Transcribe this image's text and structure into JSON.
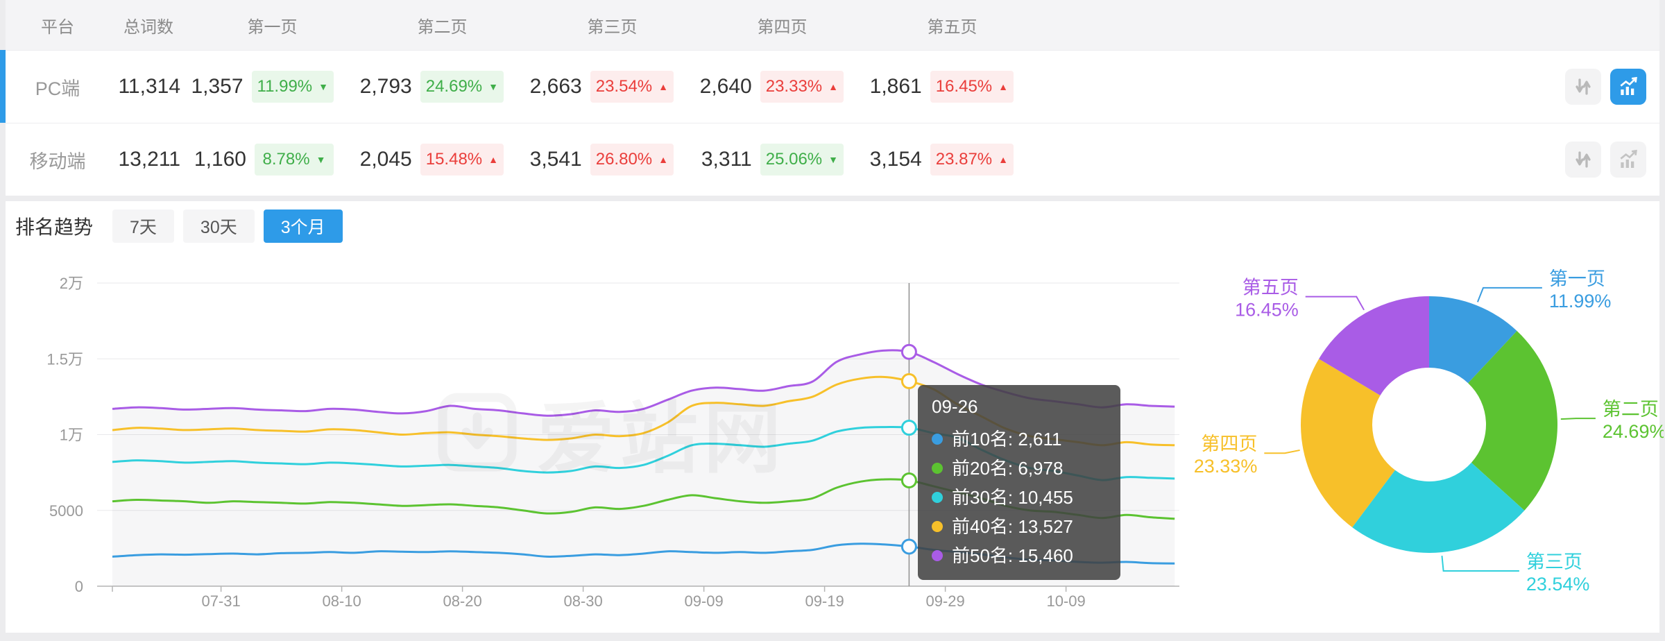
{
  "palette": {
    "blue": "#3a9de0",
    "green": "#5cc331",
    "cyan": "#30d0dc",
    "yellow": "#f7c02a",
    "purple": "#a95ce6",
    "accent": "#2e9be8",
    "badge_green_text": "#3fae49",
    "badge_green_bg": "#e9f7ea",
    "badge_red_text": "#ea3e3b",
    "badge_red_bg": "#fdeded"
  },
  "table": {
    "headers": [
      "平台",
      "总词数",
      "第一页",
      "第二页",
      "第三页",
      "第四页",
      "第五页"
    ],
    "icons": {
      "sort": "sort-arrows-icon",
      "chart": "trend-chart-icon"
    },
    "rows": [
      {
        "platform": "PC端",
        "total": "11,314",
        "selected": true,
        "chart_active": true,
        "pages": [
          {
            "count": "1,357",
            "pct": "11.99%",
            "dir": "down",
            "tone": "green"
          },
          {
            "count": "2,793",
            "pct": "24.69%",
            "dir": "down",
            "tone": "green"
          },
          {
            "count": "2,663",
            "pct": "23.54%",
            "dir": "up",
            "tone": "red"
          },
          {
            "count": "2,640",
            "pct": "23.33%",
            "dir": "up",
            "tone": "red"
          },
          {
            "count": "1,861",
            "pct": "16.45%",
            "dir": "up",
            "tone": "red"
          }
        ]
      },
      {
        "platform": "移动端",
        "total": "13,211",
        "selected": false,
        "chart_active": false,
        "pages": [
          {
            "count": "1,160",
            "pct": "8.78%",
            "dir": "down",
            "tone": "green"
          },
          {
            "count": "2,045",
            "pct": "15.48%",
            "dir": "up",
            "tone": "red"
          },
          {
            "count": "3,541",
            "pct": "26.80%",
            "dir": "up",
            "tone": "red"
          },
          {
            "count": "3,311",
            "pct": "25.06%",
            "dir": "down",
            "tone": "green"
          },
          {
            "count": "3,154",
            "pct": "23.87%",
            "dir": "up",
            "tone": "red"
          }
        ]
      }
    ]
  },
  "trend": {
    "title": "排名趋势",
    "tabs": [
      {
        "label": "7天",
        "active": false
      },
      {
        "label": "30天",
        "active": false
      },
      {
        "label": "3个月",
        "active": true
      }
    ],
    "watermark": "爱站网"
  },
  "tooltip": {
    "date": "09-26",
    "items": [
      {
        "label": "前10名",
        "value": "2,611",
        "color": "blue"
      },
      {
        "label": "前20名",
        "value": "6,978",
        "color": "green"
      },
      {
        "label": "前30名",
        "value": "10,455",
        "color": "cyan"
      },
      {
        "label": "前40名",
        "value": "13,527",
        "color": "yellow"
      },
      {
        "label": "前50名",
        "value": "15,460",
        "color": "purple"
      }
    ]
  },
  "chart_data": [
    {
      "type": "line",
      "title": "排名趋势(3个月)",
      "xlabel": "",
      "ylabel": "",
      "ylim": [
        0,
        20000
      ],
      "grid": true,
      "y_ticks": [
        {
          "v": 0,
          "label": "0"
        },
        {
          "v": 5000,
          "label": "5000"
        },
        {
          "v": 10000,
          "label": "1万"
        },
        {
          "v": 15000,
          "label": "1.5万"
        },
        {
          "v": 20000,
          "label": "2万"
        }
      ],
      "x_tick_labels": [
        "07-31",
        "08-10",
        "08-20",
        "08-30",
        "09-09",
        "09-19",
        "09-29",
        "10-09"
      ],
      "x_tick_days": [
        9,
        19,
        29,
        39,
        49,
        59,
        69,
        79
      ],
      "x_day_span": [
        0,
        88
      ],
      "point_step_days": 2,
      "crosshair_day": 66,
      "series": [
        {
          "name": "前10名",
          "color": "blue",
          "values": [
            1950,
            2050,
            2100,
            2080,
            2120,
            2150,
            2100,
            2180,
            2200,
            2250,
            2200,
            2300,
            2280,
            2250,
            2300,
            2250,
            2200,
            2100,
            1950,
            2000,
            2100,
            2050,
            2150,
            2300,
            2250,
            2200,
            2250,
            2200,
            2300,
            2400,
            2700,
            2800,
            2750,
            2611,
            2400,
            2250,
            2100,
            1900,
            1750,
            1700,
            1600,
            1550,
            1600,
            1520,
            1500
          ]
        },
        {
          "name": "前20名",
          "color": "green",
          "values": [
            5600,
            5700,
            5650,
            5600,
            5500,
            5600,
            5550,
            5500,
            5450,
            5550,
            5500,
            5400,
            5300,
            5350,
            5400,
            5300,
            5200,
            5000,
            4800,
            4900,
            5200,
            5100,
            5300,
            5700,
            6000,
            5800,
            5600,
            5500,
            5600,
            5800,
            6500,
            6900,
            7050,
            6978,
            6600,
            6200,
            5800,
            5300,
            5000,
            4900,
            4700,
            4500,
            4700,
            4550,
            4450
          ]
        },
        {
          "name": "前30名",
          "color": "cyan",
          "values": [
            8200,
            8300,
            8250,
            8150,
            8200,
            8250,
            8150,
            8100,
            8050,
            8150,
            8100,
            8000,
            7900,
            7950,
            8000,
            7900,
            7800,
            7600,
            7500,
            7600,
            7900,
            7800,
            8000,
            8600,
            9300,
            9400,
            9300,
            9200,
            9400,
            9600,
            10200,
            10450,
            10500,
            10455,
            10100,
            9800,
            9000,
            8300,
            7800,
            7600,
            7300,
            7000,
            7200,
            7150,
            7100
          ]
        },
        {
          "name": "前40名",
          "color": "yellow",
          "values": [
            10300,
            10450,
            10400,
            10300,
            10350,
            10400,
            10300,
            10250,
            10200,
            10350,
            10300,
            10150,
            10000,
            10100,
            10150,
            10000,
            9900,
            9750,
            9650,
            9750,
            10000,
            9900,
            10100,
            10800,
            11900,
            12100,
            12000,
            11900,
            12200,
            12500,
            13300,
            13700,
            13800,
            13527,
            13000,
            12000,
            11200,
            10400,
            9900,
            9700,
            9500,
            9300,
            9500,
            9350,
            9300
          ]
        },
        {
          "name": "前50名",
          "color": "purple",
          "values": [
            11700,
            11800,
            11750,
            11650,
            11700,
            11750,
            11650,
            11600,
            11550,
            11700,
            11650,
            11500,
            11400,
            11550,
            11900,
            11700,
            11600,
            11400,
            11250,
            11350,
            11600,
            11500,
            11700,
            12300,
            12900,
            13100,
            13000,
            12900,
            13200,
            13500,
            14800,
            15300,
            15550,
            15460,
            14800,
            14000,
            13300,
            12800,
            12400,
            12200,
            12000,
            11800,
            12000,
            11900,
            11850
          ]
        }
      ]
    },
    {
      "type": "pie",
      "donut": true,
      "slices": [
        {
          "label": "第一页",
          "pct": 11.99,
          "color": "blue"
        },
        {
          "label": "第二页",
          "pct": 24.69,
          "color": "green"
        },
        {
          "label": "第三页",
          "pct": 23.54,
          "color": "cyan"
        },
        {
          "label": "第四页",
          "pct": 23.33,
          "color": "yellow"
        },
        {
          "label": "第五页",
          "pct": 16.45,
          "color": "purple"
        }
      ]
    }
  ]
}
